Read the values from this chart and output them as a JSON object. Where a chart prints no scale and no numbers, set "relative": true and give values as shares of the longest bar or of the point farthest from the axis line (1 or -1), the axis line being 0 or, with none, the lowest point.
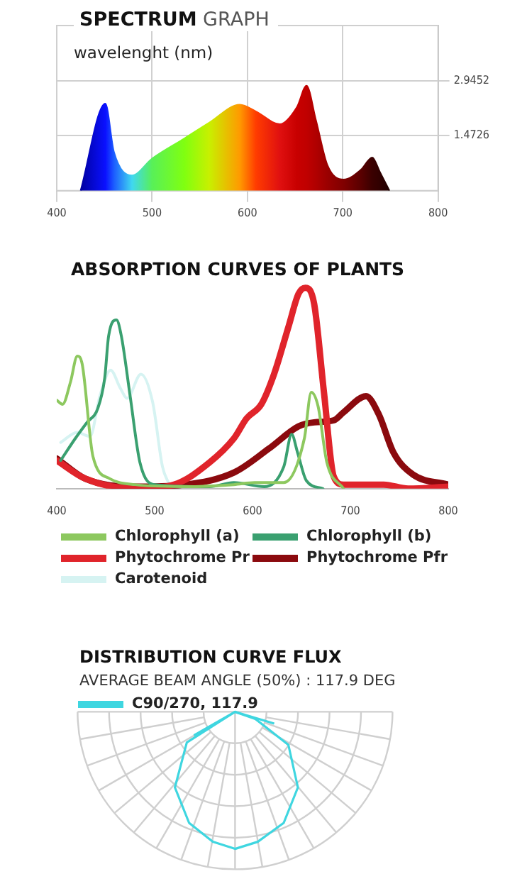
{
  "chart_data": [
    {
      "type": "area",
      "title": "SPECTRUM GRAPH",
      "xlabel": "wavelenght (nm)",
      "x": [
        425,
        451,
        460,
        479,
        500,
        534,
        560,
        592,
        609,
        634,
        652,
        662,
        672,
        684,
        701,
        719,
        731,
        739,
        749
      ],
      "values": [
        0,
        2.33,
        1.04,
        0.41,
        0.86,
        1.4,
        1.82,
        2.3,
        2.12,
        1.78,
        2.24,
        2.81,
        1.88,
        0.68,
        0.3,
        0.56,
        0.89,
        0.5,
        0
      ],
      "colors": [
        "#0000a0",
        "#0a10ff",
        "#1c5cff",
        "#40d8f0",
        "#58f058",
        "#80ff10",
        "#c8f000",
        "#ff9a00",
        "#ff3c00",
        "#e01010",
        "#c80000",
        "#c00000",
        "#b00000",
        "#9a0000",
        "#800000",
        "#5a0000",
        "#3a0000",
        "#300000",
        "#200000"
      ],
      "xlim": [
        400,
        800
      ],
      "xticks": [
        400,
        500,
        600,
        700,
        800
      ],
      "ylim": [
        0,
        4.4178
      ],
      "yticks": [
        1.4726,
        2.9452
      ],
      "grid": true
    },
    {
      "type": "line",
      "title": "ABSORPTION CURVES OF PLANTS",
      "relative": true,
      "xlim": [
        400,
        800
      ],
      "xticks": [
        400,
        500,
        600,
        700,
        800
      ],
      "tick_labels": "x",
      "legend": "bottom",
      "series": [
        {
          "name": "Chlorophyll (a)",
          "color": "#8dc85f",
          "x": [
            400,
            406,
            414,
            421,
            426,
            437,
            454,
            480,
            531,
            581,
            602,
            632,
            653,
            660,
            667,
            676,
            693
          ],
          "values": [
            0.44,
            0.42,
            0.53,
            0.66,
            0.62,
            0.16,
            0.05,
            0.02,
            0.01,
            0.02,
            0.03,
            0.03,
            0.25,
            0.48,
            0.41,
            0.13,
            0
          ]
        },
        {
          "name": "Chlorophyll (b)",
          "color": "#3aa070",
          "x": [
            404,
            419,
            431,
            442,
            449,
            453,
            461,
            466,
            475,
            485,
            500,
            556,
            581,
            612,
            632,
            640,
            646,
            655,
            672
          ],
          "values": [
            0.14,
            0.25,
            0.33,
            0.4,
            0.55,
            0.76,
            0.84,
            0.76,
            0.46,
            0.13,
            0.02,
            0.01,
            0.03,
            0.01,
            0.11,
            0.27,
            0.18,
            0.04,
            0
          ]
        },
        {
          "name": "Phytochrome Pr",
          "color": "#e0242b",
          "x": [
            400,
            429,
            480,
            520,
            556,
            581,
            594,
            609,
            622,
            637,
            647,
            654,
            663,
            673,
            683,
            693,
            734,
            759,
            800
          ],
          "values": [
            0.14,
            0.05,
            0,
            0.02,
            0.13,
            0.25,
            0.35,
            0.42,
            0.57,
            0.81,
            0.97,
            1,
            0.92,
            0.48,
            0.06,
            0.02,
            0.02,
            0,
            0.01
          ]
        },
        {
          "name": "Phytochrome Pfr",
          "color": "#8b0a0e",
          "x": [
            400,
            429,
            480,
            531,
            581,
            617,
            647,
            663,
            683,
            693,
            716,
            729,
            744,
            764,
            800
          ],
          "values": [
            0.15,
            0.05,
            0.01,
            0.02,
            0.08,
            0.2,
            0.31,
            0.33,
            0.34,
            0.38,
            0.46,
            0.37,
            0.18,
            0.07,
            0.02
          ]
        },
        {
          "name": "Carotenoid",
          "color": "#d6f3f2",
          "x": [
            404,
            421,
            434,
            444,
            455,
            465,
            472,
            486,
            498,
            508,
            515
          ],
          "values": [
            0.23,
            0.28,
            0.26,
            0.46,
            0.59,
            0.5,
            0.45,
            0.57,
            0.43,
            0.11,
            0.02
          ]
        }
      ]
    },
    {
      "type": "other",
      "title": "DISTRIBUTION CURVE FLUX",
      "subtitle": "AVERAGE BEAM ANGLE  (50%) : 117.9 DEG",
      "legend": "top left",
      "series": [
        {
          "name": "C90/270, 117.9",
          "color": "#3fd6e0"
        }
      ]
    }
  ]
}
